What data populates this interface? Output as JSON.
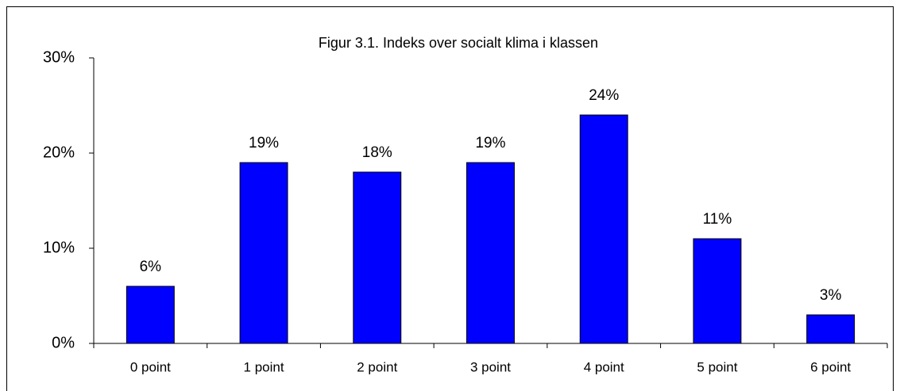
{
  "chart_data": {
    "type": "bar",
    "title": "Figur 3.1. Indeks over socialt klima i klassen",
    "categories": [
      "0 point",
      "1 point",
      "2 point",
      "3 point",
      "4 point",
      "5 point",
      "6 point"
    ],
    "values": [
      6,
      19,
      18,
      19,
      24,
      11,
      3
    ],
    "value_labels": [
      "6%",
      "19%",
      "18%",
      "19%",
      "24%",
      "11%",
      "3%"
    ],
    "color": "#0000ff",
    "ylim": [
      0,
      30
    ],
    "yticks": [
      {
        "value": 0,
        "label": "0%"
      },
      {
        "value": 10,
        "label": "10%"
      },
      {
        "value": 20,
        "label": "20%"
      },
      {
        "value": 30,
        "label": "30%"
      }
    ],
    "grid": false
  }
}
